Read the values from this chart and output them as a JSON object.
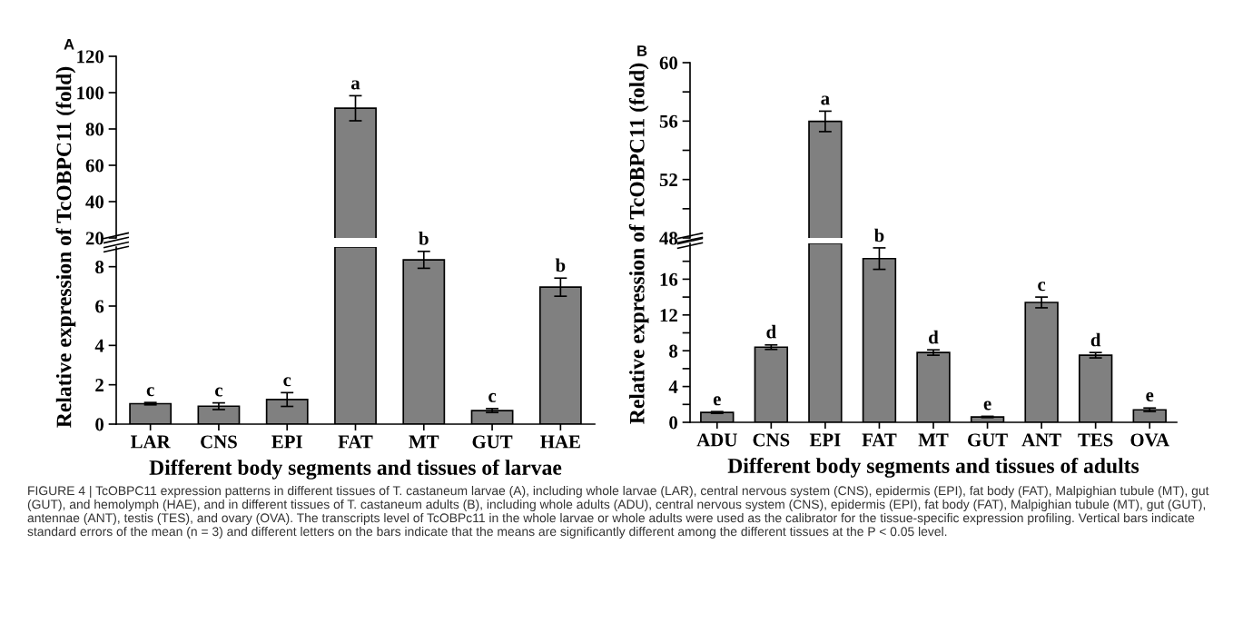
{
  "chart_data": [
    {
      "type": "bar",
      "title": "A",
      "categories": [
        "LAR",
        "CNS",
        "EPI",
        "FAT",
        "MT",
        "GUT",
        "HAE"
      ],
      "tick_labels": "y",
      "series": [
        {
          "color": "#808080",
          "values": [
            null,
            null,
            null,
            91.4,
            null,
            null,
            null
          ],
          "errors": [
            null,
            null,
            null,
            6.9,
            null,
            null,
            null
          ]
        }
      ],
      "ylim": [
        20,
        120
      ],
      "yticks": [
        20,
        40,
        60,
        80,
        100,
        120
      ],
      "annotations": [
        {
          "text": "a",
          "x": "FAT",
          "y": 98.3
        }
      ]
    },
    {
      "type": "bar",
      "categories": [
        "LAR",
        "CNS",
        "EPI",
        "FAT",
        "MT",
        "GUT",
        "HAE"
      ],
      "xlabel": "Different body segments and tissues of larvae",
      "ylabel": "Relative expression of TcOBPC11 (fold)",
      "series": [
        {
          "color": "#808080",
          "values": [
            1.04,
            0.91,
            1.25,
            9,
            8.35,
            0.69,
            6.96
          ],
          "errors": [
            0.06,
            0.17,
            0.35,
            null,
            0.43,
            0.1,
            0.46
          ]
        }
      ],
      "ylim": [
        0,
        9
      ],
      "yticks": [
        0,
        2,
        4,
        6,
        8
      ],
      "annotations": [
        {
          "text": "c",
          "x": "LAR",
          "y": 1.1
        },
        {
          "text": "c",
          "x": "CNS",
          "y": 1.08
        },
        {
          "text": "c",
          "x": "EPI",
          "y": 1.6
        },
        {
          "text": "b",
          "x": "MT",
          "y": 8.78
        },
        {
          "text": "c",
          "x": "GUT",
          "y": 0.79
        },
        {
          "text": "b",
          "x": "HAE",
          "y": 7.42
        }
      ]
    },
    {
      "type": "bar",
      "title": "B",
      "categories": [
        "ADU",
        "CNS",
        "EPI",
        "FAT",
        "MT",
        "GUT",
        "ANT",
        "TES",
        "OVA"
      ],
      "tick_labels": "y",
      "series": [
        {
          "color": "#808080",
          "values": [
            null,
            null,
            55.98,
            null,
            null,
            null,
            null,
            null,
            null
          ],
          "errors": [
            null,
            null,
            0.7,
            null,
            null,
            null,
            null,
            null,
            null
          ]
        }
      ],
      "ylim": [
        48,
        60
      ],
      "yticks": [
        48,
        {
          "value": 50,
          "label": null
        },
        52,
        {
          "value": 54,
          "label": null
        },
        56,
        {
          "value": 58,
          "label": null
        },
        60
      ],
      "annotations": [
        {
          "text": "a",
          "x": "EPI",
          "y": 56.68
        }
      ]
    },
    {
      "type": "bar",
      "categories": [
        "ADU",
        "CNS",
        "EPI",
        "FAT",
        "MT",
        "GUT",
        "ANT",
        "TES",
        "OVA"
      ],
      "xlabel": "Different body segments and tissues of adults",
      "ylabel": "Relative expression of TcOBPC11 (fold)",
      "series": [
        {
          "color": "#808080",
          "values": [
            1.1,
            8.4,
            20,
            18.3,
            7.8,
            0.6,
            13.4,
            7.5,
            1.4
          ],
          "errors": [
            0.1,
            0.25,
            null,
            1.2,
            0.3,
            0.07,
            0.6,
            0.3,
            0.2
          ]
        }
      ],
      "ylim": [
        0,
        20
      ],
      "yticks": [
        0,
        {
          "value": 2,
          "label": null
        },
        4,
        {
          "value": 6,
          "label": null
        },
        8,
        {
          "value": 10,
          "label": null
        },
        12,
        {
          "value": 14,
          "label": null
        },
        16,
        {
          "value": 18,
          "label": null
        }
      ],
      "annotations": [
        {
          "text": "e",
          "x": "ADU",
          "y": 1.18
        },
        {
          "text": "d",
          "x": "CNS",
          "y": 8.68
        },
        {
          "text": "b",
          "x": "FAT",
          "y": 19.46
        },
        {
          "text": "d",
          "x": "MT",
          "y": 8.08
        },
        {
          "text": "e",
          "x": "GUT",
          "y": 0.67
        },
        {
          "text": "c",
          "x": "ANT",
          "y": 13.98
        },
        {
          "text": "d",
          "x": "TES",
          "y": 7.78
        },
        {
          "text": "e",
          "x": "OVA",
          "y": 1.62
        },
        "FIGURE 4 | TcOBPC11 expression patterns in different tissues of T. castaneum larvae (A), including whole larvae (LAR), central nervous system (CNS), epidermis (EPI), fat body (FAT), Malpighian tubule (MT), gut (GUT), and hemolymph (HAE), and in different tissues of T. castaneum adults (B), including whole adults (ADU), central nervous system (CNS), epidermis (EPI), fat body (FAT), Malpighian tubule (MT), gut (GUT), antennae (ANT), testis (TES), and ovary (OVA). The transcripts level of TcOBPc11 in the whole larvae or whole adults were used as the calibrator for the tissue-specific expression profiling. Vertical bars indicate standard errors of the mean (n = 3) and different letters on the bars indicate that the means are significantly different among the different tissues at the P < 0.05 level."
      ]
    }
  ]
}
